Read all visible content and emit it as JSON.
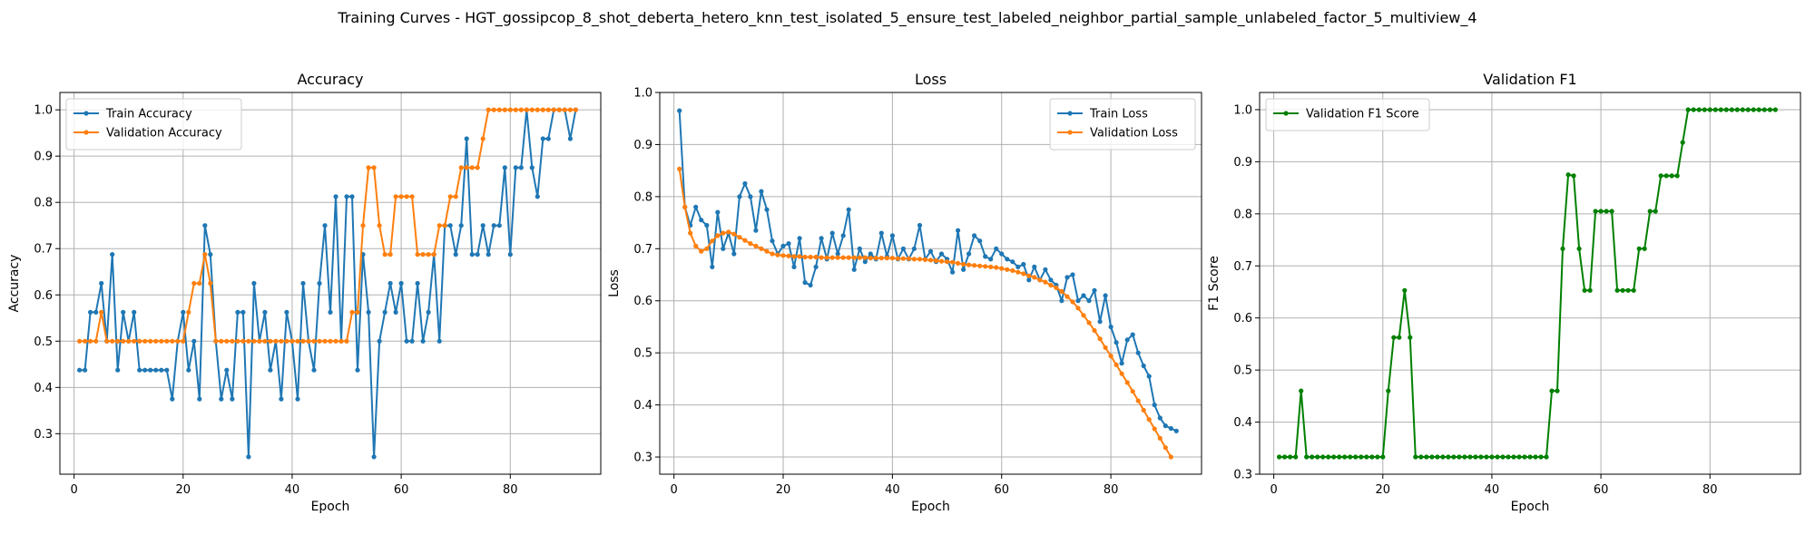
{
  "figure_title": "Training Curves - HGT_gossipcop_8_shot_deberta_hetero_knn_test_isolated_5_ensure_test_labeled_neighbor_partial_sample_unlabeled_factor_5_multiview_4",
  "colors": {
    "train": "#1f77b4",
    "val": "#ff7f0e",
    "f1": "#008000",
    "grid": "#b0b0b0"
  },
  "chart_data": [
    {
      "type": "line",
      "title": "Accuracy",
      "xlabel": "Epoch",
      "ylabel": "Accuracy",
      "xlim": [
        -2.6,
        96.6
      ],
      "ylim": [
        0.2125,
        1.0375
      ],
      "xticks": [
        0,
        20,
        40,
        60,
        80
      ],
      "yticks": [
        0.3,
        0.4,
        0.5,
        0.6,
        0.7,
        0.8,
        0.9,
        1.0
      ],
      "ytick_labels": [
        "0.3",
        "0.4",
        "0.5",
        "0.6",
        "0.7",
        "0.8",
        "0.9",
        "1.0"
      ],
      "grid": true,
      "legend": "upper left",
      "series": [
        {
          "name": "Train Accuracy",
          "color": "#1f77b4",
          "x_start": 1,
          "values": [
            0.4375,
            0.4375,
            0.5625,
            0.5625,
            0.625,
            0.5,
            0.6875,
            0.4375,
            0.5625,
            0.5,
            0.5625,
            0.4375,
            0.4375,
            0.4375,
            0.4375,
            0.4375,
            0.4375,
            0.375,
            0.5,
            0.5625,
            0.4375,
            0.5,
            0.375,
            0.75,
            0.6875,
            0.5,
            0.375,
            0.4375,
            0.375,
            0.5625,
            0.5625,
            0.25,
            0.625,
            0.5,
            0.5625,
            0.4375,
            0.5,
            0.375,
            0.5625,
            0.5,
            0.375,
            0.625,
            0.5,
            0.4375,
            0.625,
            0.75,
            0.5625,
            0.8125,
            0.5,
            0.8125,
            0.8125,
            0.4375,
            0.6875,
            0.5625,
            0.25,
            0.5,
            0.5625,
            0.625,
            0.5625,
            0.625,
            0.5,
            0.5,
            0.625,
            0.5,
            0.5625,
            0.6875,
            0.5,
            0.75,
            0.75,
            0.6875,
            0.75,
            0.9375,
            0.6875,
            0.6875,
            0.75,
            0.6875,
            0.75,
            0.75,
            0.875,
            0.6875,
            0.875,
            0.875,
            1.0,
            0.875,
            0.8125,
            0.9375,
            0.9375,
            1.0,
            1.0,
            1.0,
            0.9375,
            1.0
          ]
        },
        {
          "name": "Validation Accuracy",
          "color": "#ff7f0e",
          "x_start": 1,
          "values": [
            0.5,
            0.5,
            0.5,
            0.5,
            0.5625,
            0.5,
            0.5,
            0.5,
            0.5,
            0.5,
            0.5,
            0.5,
            0.5,
            0.5,
            0.5,
            0.5,
            0.5,
            0.5,
            0.5,
            0.5,
            0.5625,
            0.625,
            0.625,
            0.6875,
            0.625,
            0.5,
            0.5,
            0.5,
            0.5,
            0.5,
            0.5,
            0.5,
            0.5,
            0.5,
            0.5,
            0.5,
            0.5,
            0.5,
            0.5,
            0.5,
            0.5,
            0.5,
            0.5,
            0.5,
            0.5,
            0.5,
            0.5,
            0.5,
            0.5,
            0.5,
            0.5625,
            0.5625,
            0.75,
            0.875,
            0.875,
            0.75,
            0.6875,
            0.6875,
            0.8125,
            0.8125,
            0.8125,
            0.8125,
            0.6875,
            0.6875,
            0.6875,
            0.6875,
            0.75,
            0.75,
            0.8125,
            0.8125,
            0.875,
            0.875,
            0.875,
            0.875,
            0.9375,
            1.0,
            1.0,
            1.0,
            1.0,
            1.0,
            1.0,
            1.0,
            1.0,
            1.0,
            1.0,
            1.0,
            1.0,
            1.0,
            1.0,
            1.0,
            1.0,
            1.0
          ]
        }
      ]
    },
    {
      "type": "line",
      "title": "Loss",
      "xlabel": "Epoch",
      "ylabel": "Loss",
      "xlim": [
        -2.6,
        96.6
      ],
      "ylim": [
        0.267,
        1.0
      ],
      "xticks": [
        0,
        20,
        40,
        60,
        80
      ],
      "yticks": [
        0.3,
        0.4,
        0.5,
        0.6,
        0.7,
        0.8,
        0.9,
        1.0
      ],
      "ytick_labels": [
        "0.3",
        "0.4",
        "0.5",
        "0.6",
        "0.7",
        "0.8",
        "0.9",
        "1.0"
      ],
      "grid": true,
      "legend": "upper right",
      "series": [
        {
          "name": "Train Loss",
          "color": "#1f77b4",
          "x_start": 1,
          "values": [
            0.965,
            0.78,
            0.745,
            0.78,
            0.755,
            0.745,
            0.665,
            0.77,
            0.7,
            0.73,
            0.69,
            0.8,
            0.825,
            0.8,
            0.735,
            0.81,
            0.775,
            0.715,
            0.69,
            0.705,
            0.71,
            0.665,
            0.72,
            0.635,
            0.63,
            0.665,
            0.72,
            0.68,
            0.73,
            0.69,
            0.725,
            0.775,
            0.66,
            0.7,
            0.675,
            0.69,
            0.68,
            0.73,
            0.685,
            0.725,
            0.68,
            0.7,
            0.68,
            0.7,
            0.745,
            0.68,
            0.695,
            0.675,
            0.69,
            0.68,
            0.655,
            0.735,
            0.66,
            0.69,
            0.725,
            0.715,
            0.685,
            0.68,
            0.7,
            0.69,
            0.68,
            0.675,
            0.665,
            0.67,
            0.64,
            0.665,
            0.64,
            0.66,
            0.64,
            0.63,
            0.6,
            0.645,
            0.65,
            0.6,
            0.61,
            0.6,
            0.62,
            0.56,
            0.61,
            0.55,
            0.52,
            0.48,
            0.525,
            0.535,
            0.5,
            0.475,
            0.455,
            0.4,
            0.375,
            0.36,
            0.355,
            0.35
          ]
        },
        {
          "name": "Validation Loss",
          "color": "#ff7f0e",
          "x_start": 1,
          "values": [
            0.853,
            0.78,
            0.73,
            0.705,
            0.695,
            0.7,
            0.715,
            0.725,
            0.73,
            0.732,
            0.728,
            0.722,
            0.716,
            0.71,
            0.705,
            0.7,
            0.695,
            0.69,
            0.688,
            0.687,
            0.686,
            0.685,
            0.685,
            0.684,
            0.684,
            0.684,
            0.683,
            0.683,
            0.683,
            0.683,
            0.683,
            0.683,
            0.683,
            0.683,
            0.683,
            0.682,
            0.682,
            0.682,
            0.682,
            0.682,
            0.681,
            0.681,
            0.681,
            0.68,
            0.68,
            0.679,
            0.678,
            0.677,
            0.676,
            0.675,
            0.674,
            0.672,
            0.67,
            0.669,
            0.668,
            0.667,
            0.666,
            0.665,
            0.664,
            0.662,
            0.66,
            0.658,
            0.655,
            0.652,
            0.648,
            0.645,
            0.64,
            0.636,
            0.63,
            0.625,
            0.618,
            0.608,
            0.598,
            0.586,
            0.572,
            0.558,
            0.543,
            0.527,
            0.51,
            0.494,
            0.477,
            0.46,
            0.443,
            0.426,
            0.408,
            0.39,
            0.372,
            0.354,
            0.336,
            0.318,
            0.3
          ]
        }
      ]
    },
    {
      "type": "line",
      "title": "Validation F1",
      "xlabel": "Epoch",
      "ylabel": "F1 Score",
      "xlim": [
        -2.6,
        96.6
      ],
      "ylim": [
        0.3,
        1.033
      ],
      "xticks": [
        0,
        20,
        40,
        60,
        80
      ],
      "yticks": [
        0.3,
        0.4,
        0.5,
        0.6,
        0.7,
        0.8,
        0.9,
        1.0
      ],
      "ytick_labels": [
        "0.3",
        "0.4",
        "0.5",
        "0.6",
        "0.7",
        "0.8",
        "0.9",
        "1.0"
      ],
      "grid": true,
      "legend": "upper left",
      "series": [
        {
          "name": "Validation F1 Score",
          "color": "#008000",
          "x_start": 1,
          "values": [
            0.333,
            0.333,
            0.333,
            0.333,
            0.46,
            0.333,
            0.333,
            0.333,
            0.333,
            0.333,
            0.333,
            0.333,
            0.333,
            0.333,
            0.333,
            0.333,
            0.333,
            0.333,
            0.333,
            0.333,
            0.46,
            0.5625,
            0.5625,
            0.653,
            0.5625,
            0.333,
            0.333,
            0.333,
            0.333,
            0.333,
            0.333,
            0.333,
            0.333,
            0.333,
            0.333,
            0.333,
            0.333,
            0.333,
            0.333,
            0.333,
            0.333,
            0.333,
            0.333,
            0.333,
            0.333,
            0.333,
            0.333,
            0.333,
            0.333,
            0.333,
            0.46,
            0.46,
            0.733,
            0.875,
            0.873,
            0.733,
            0.653,
            0.653,
            0.805,
            0.805,
            0.805,
            0.805,
            0.653,
            0.653,
            0.653,
            0.653,
            0.733,
            0.733,
            0.805,
            0.805,
            0.873,
            0.873,
            0.873,
            0.873,
            0.937,
            1.0,
            1.0,
            1.0,
            1.0,
            1.0,
            1.0,
            1.0,
            1.0,
            1.0,
            1.0,
            1.0,
            1.0,
            1.0,
            1.0,
            1.0,
            1.0,
            1.0
          ]
        }
      ]
    }
  ]
}
